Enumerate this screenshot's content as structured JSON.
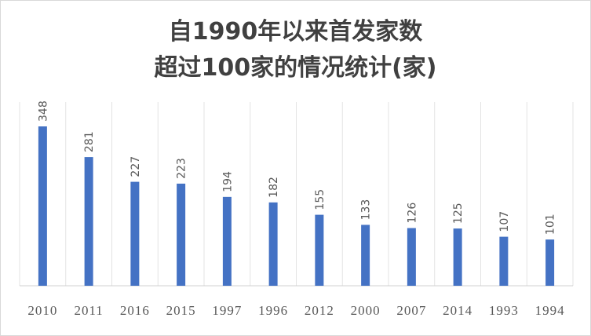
{
  "chart_data": {
    "type": "bar",
    "title_lines": [
      "自1990年以来首发家数",
      "超过100家的情况统计(家)"
    ],
    "categories": [
      "2010",
      "2011",
      "2016",
      "2015",
      "1997",
      "1996",
      "2012",
      "2000",
      "2007",
      "2014",
      "1993",
      "1994"
    ],
    "values": [
      348,
      281,
      227,
      223,
      194,
      182,
      155,
      133,
      126,
      125,
      107,
      101
    ],
    "ylim": [
      0,
      350
    ],
    "grid": "vertical",
    "bar_color": "#4472c4",
    "data_labels": true
  }
}
